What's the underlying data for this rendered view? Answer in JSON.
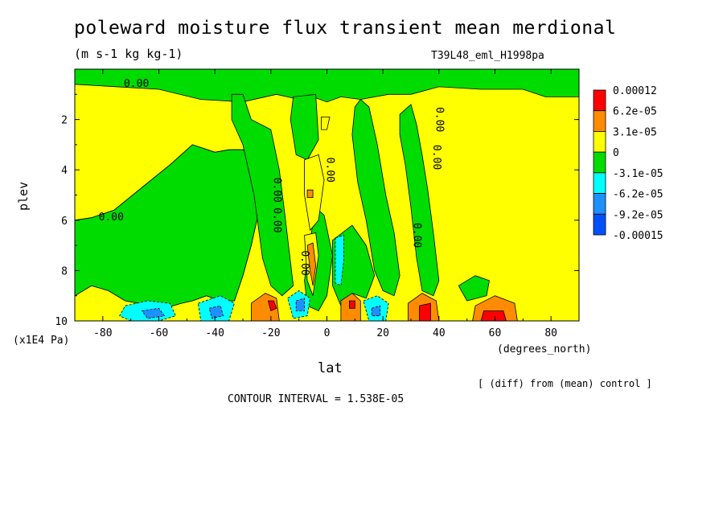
{
  "chart_data": {
    "type": "heatmap",
    "title": "poleward moisture flux transient mean merdional",
    "units": "(m s-1 kg kg-1)",
    "run_label": "T39L48_eml_H1998pa",
    "xlabel": "lat",
    "x_unit": "(degrees_north)",
    "ylabel": "plev",
    "y_unit": "(x1E4 Pa)",
    "note": "[ (diff) from (mean) control ]",
    "contour_interval": "CONTOUR INTERVAL = 1.538E-05",
    "xlim": [
      -90,
      90
    ],
    "ylim": [
      10,
      0
    ],
    "x_ticks": [
      "-80",
      "-60",
      "-40",
      "-20",
      "0",
      "20",
      "40",
      "60",
      "80"
    ],
    "x_tick_values": [
      -80,
      -60,
      -40,
      -20,
      0,
      20,
      40,
      60,
      80
    ],
    "y_ticks": [
      "2",
      "4",
      "6",
      "8",
      "10"
    ],
    "y_tick_values": [
      2,
      4,
      6,
      8,
      10
    ],
    "contour_labels": [
      {
        "text": "0.00",
        "lat": -68,
        "plev": 0.7
      },
      {
        "text": "0.00",
        "lat": -77,
        "plev": 6.0
      },
      {
        "text": "0.00",
        "lat": -19,
        "plev": 6.0
      },
      {
        "text": "0.00",
        "lat": -19,
        "plev": 4.8
      },
      {
        "text": "0.00",
        "lat": -9,
        "plev": 7.7
      },
      {
        "text": "0.00",
        "lat": 0,
        "plev": 4.0
      },
      {
        "text": "0.00",
        "lat": 31,
        "plev": 6.6
      },
      {
        "text": "0.00",
        "lat": 38,
        "plev": 3.5
      },
      {
        "text": "0.00",
        "lat": 39,
        "plev": 2.0
      }
    ],
    "legend": {
      "labels": [
        "0.00012",
        "6.2e-05",
        "3.1e-05",
        "0",
        "-3.1e-05",
        "-6.2e-05",
        "-9.2e-05",
        "-0.00015"
      ],
      "colors": [
        "#ff0000",
        "#ff8c00",
        "#e5a023",
        "#ffff00",
        "#00dc00",
        "#00ffff",
        "#1e90ff",
        "#0050ff"
      ]
    },
    "fill_colors": {
      "pos3": "#ff0000",
      "pos2": "#ff8c00",
      "pos1": "#ffff00",
      "neg1": "#00dc00",
      "neg2": "#00ffff",
      "neg3": "#1e90ff",
      "neg4": "#0050ff"
    },
    "regions": [
      {
        "level": "pos1",
        "points": [
          [
            -90,
            0.6
          ],
          [
            -60,
            0.8
          ],
          [
            -45,
            1.2
          ],
          [
            -30,
            1.3
          ],
          [
            -18,
            1.0
          ],
          [
            -10,
            1.2
          ],
          [
            -5,
            1.1
          ],
          [
            0,
            1.3
          ],
          [
            5,
            1.1
          ],
          [
            12,
            1.2
          ],
          [
            22,
            1.0
          ],
          [
            30,
            1.0
          ],
          [
            40,
            0.7
          ],
          [
            55,
            0.8
          ],
          [
            70,
            0.8
          ],
          [
            78,
            1.1
          ],
          [
            90,
            1.1
          ],
          [
            90,
            10
          ],
          [
            -90,
            10
          ],
          [
            -90,
            9.0
          ],
          [
            -84,
            8.6
          ],
          [
            -78,
            8.8
          ],
          [
            -72,
            9.2
          ],
          [
            -62,
            9.4
          ],
          [
            -58,
            9.5
          ],
          [
            -52,
            9.3
          ],
          [
            -48,
            9.2
          ],
          [
            -43,
            9.0
          ],
          [
            -38,
            9.2
          ],
          [
            -33,
            9.2
          ],
          [
            -30,
            8.2
          ],
          [
            -27,
            7.0
          ],
          [
            -25,
            6.0
          ],
          [
            -22,
            5.3
          ],
          [
            -24,
            4.8
          ],
          [
            -26,
            3.5
          ],
          [
            -30,
            3.2
          ],
          [
            -35,
            3.2
          ],
          [
            -40,
            3.3
          ],
          [
            -48,
            3.0
          ],
          [
            -56,
            3.8
          ],
          [
            -66,
            4.7
          ],
          [
            -76,
            5.6
          ],
          [
            -84,
            5.9
          ],
          [
            -90,
            6.0
          ]
        ]
      },
      {
        "level": "neg1",
        "points": [
          [
            -90,
            6.0
          ],
          [
            -84,
            5.9
          ],
          [
            -76,
            5.6
          ],
          [
            -66,
            4.7
          ],
          [
            -56,
            3.8
          ],
          [
            -48,
            3.0
          ],
          [
            -40,
            3.3
          ],
          [
            -35,
            3.2
          ],
          [
            -30,
            3.2
          ],
          [
            -26,
            3.5
          ],
          [
            -24,
            4.8
          ],
          [
            -22,
            5.3
          ],
          [
            -25,
            6.0
          ],
          [
            -27,
            7.0
          ],
          [
            -30,
            8.2
          ],
          [
            -33,
            9.2
          ],
          [
            -38,
            9.2
          ],
          [
            -43,
            9.0
          ],
          [
            -48,
            9.2
          ],
          [
            -52,
            9.3
          ],
          [
            -58,
            9.5
          ],
          [
            -62,
            9.4
          ],
          [
            -72,
            9.2
          ],
          [
            -78,
            8.8
          ],
          [
            -84,
            8.6
          ],
          [
            -90,
            9.0
          ]
        ]
      },
      {
        "level": "neg1",
        "points": [
          [
            -34,
            1.0
          ],
          [
            -30,
            1.0
          ],
          [
            -27,
            2.0
          ],
          [
            -20,
            2.4
          ],
          [
            -17,
            4.0
          ],
          [
            -15,
            5.8
          ],
          [
            -12,
            8.6
          ],
          [
            -16,
            9.0
          ],
          [
            -20,
            8.6
          ],
          [
            -23,
            7.5
          ],
          [
            -26,
            5.0
          ],
          [
            -30,
            3.0
          ],
          [
            -34,
            2.0
          ]
        ]
      },
      {
        "level": "neg1",
        "points": [
          [
            -12,
            1.1
          ],
          [
            -4,
            1.0
          ],
          [
            -3,
            2.8
          ],
          [
            -7,
            3.6
          ],
          [
            -11,
            3.4
          ],
          [
            -13,
            2.0
          ]
        ]
      },
      {
        "level": "neg1",
        "points": [
          [
            12,
            1.2
          ],
          [
            15,
            1.5
          ],
          [
            18,
            3.0
          ],
          [
            21,
            5.0
          ],
          [
            24,
            6.5
          ],
          [
            26,
            8.2
          ],
          [
            24,
            9.0
          ],
          [
            20,
            8.8
          ],
          [
            17,
            8.0
          ],
          [
            14,
            6.0
          ],
          [
            11,
            4.5
          ],
          [
            9,
            2.6
          ],
          [
            10,
            1.5
          ]
        ]
      },
      {
        "level": "neg1",
        "points": [
          [
            26,
            1.8
          ],
          [
            30,
            1.4
          ],
          [
            32,
            2.2
          ],
          [
            34,
            3.4
          ],
          [
            36,
            4.8
          ],
          [
            38,
            6.5
          ],
          [
            40,
            8.4
          ],
          [
            38,
            9.0
          ],
          [
            34,
            8.8
          ],
          [
            32,
            7.5
          ],
          [
            30,
            5.5
          ],
          [
            28,
            3.8
          ],
          [
            26,
            2.6
          ]
        ]
      },
      {
        "level": "neg1",
        "points": [
          [
            -4,
            5.5
          ],
          [
            -1,
            5.8
          ],
          [
            2,
            7.4
          ],
          [
            0,
            9.0
          ],
          [
            -3,
            9.6
          ],
          [
            -7,
            9.4
          ],
          [
            -8,
            8.4
          ],
          [
            -6,
            6.8
          ]
        ]
      },
      {
        "level": "neg1",
        "points": [
          [
            2,
            6.8
          ],
          [
            9,
            6.2
          ],
          [
            14,
            7.0
          ],
          [
            17,
            8.2
          ],
          [
            14,
            9.1
          ],
          [
            9,
            8.9
          ],
          [
            5,
            9.4
          ],
          [
            2,
            8.6
          ]
        ]
      },
      {
        "level": "neg1",
        "points": [
          [
            47,
            8.6
          ],
          [
            53,
            8.2
          ],
          [
            58,
            8.4
          ],
          [
            57,
            9.0
          ],
          [
            50,
            9.2
          ]
        ]
      },
      {
        "level": "pos1",
        "points": [
          [
            -2,
            1.9
          ],
          [
            1,
            1.9
          ],
          [
            0,
            2.4
          ],
          [
            -2,
            2.4
          ]
        ]
      },
      {
        "level": "pos1",
        "points": [
          [
            -8,
            3.6
          ],
          [
            -3,
            3.4
          ],
          [
            -1,
            4.4
          ],
          [
            -3,
            6.0
          ],
          [
            -6,
            6.4
          ],
          [
            -8,
            5.0
          ]
        ]
      },
      {
        "level": "pos2",
        "points": [
          [
            -7,
            4.8
          ],
          [
            -5,
            4.8
          ],
          [
            -5,
            5.1
          ],
          [
            -7,
            5.1
          ]
        ]
      },
      {
        "level": "pos1",
        "points": [
          [
            -8,
            6.6
          ],
          [
            -4,
            6.5
          ],
          [
            -3,
            7.4
          ],
          [
            -5,
            9.0
          ],
          [
            -7,
            8.4
          ]
        ]
      },
      {
        "level": "pos2",
        "points": [
          [
            -7,
            7.0
          ],
          [
            -5,
            6.9
          ],
          [
            -4,
            7.8
          ],
          [
            -5,
            8.6
          ],
          [
            -6,
            8.0
          ]
        ]
      },
      {
        "level": "neg2",
        "points": [
          [
            3,
            6.7
          ],
          [
            6,
            6.6
          ],
          [
            6,
            7.6
          ],
          [
            5,
            8.6
          ],
          [
            3,
            8.5
          ]
        ]
      },
      {
        "level": "neg2",
        "points": [
          [
            -72,
            9.4
          ],
          [
            -64,
            9.2
          ],
          [
            -56,
            9.3
          ],
          [
            -54,
            9.8
          ],
          [
            -60,
            10
          ],
          [
            -70,
            10
          ],
          [
            -74,
            9.8
          ]
        ]
      },
      {
        "level": "neg3",
        "points": [
          [
            -66,
            9.6
          ],
          [
            -60,
            9.5
          ],
          [
            -58,
            9.8
          ],
          [
            -64,
            9.9
          ]
        ]
      },
      {
        "level": "neg2",
        "points": [
          [
            -46,
            9.3
          ],
          [
            -38,
            9.0
          ],
          [
            -33,
            9.3
          ],
          [
            -35,
            10
          ],
          [
            -45,
            10
          ]
        ]
      },
      {
        "level": "neg3",
        "points": [
          [
            -42,
            9.5
          ],
          [
            -38,
            9.4
          ],
          [
            -37,
            9.8
          ],
          [
            -41,
            9.9
          ]
        ]
      },
      {
        "level": "neg2",
        "points": [
          [
            -14,
            9.1
          ],
          [
            -10,
            8.8
          ],
          [
            -6,
            9.1
          ],
          [
            -7,
            9.8
          ],
          [
            -12,
            9.9
          ]
        ]
      },
      {
        "level": "neg3",
        "points": [
          [
            -11,
            9.2
          ],
          [
            -8,
            9.1
          ],
          [
            -8,
            9.6
          ],
          [
            -11,
            9.6
          ]
        ]
      },
      {
        "level": "neg2",
        "points": [
          [
            13,
            9.2
          ],
          [
            18,
            9.0
          ],
          [
            22,
            9.3
          ],
          [
            21,
            10
          ],
          [
            15,
            10
          ]
        ]
      },
      {
        "level": "neg3",
        "points": [
          [
            16,
            9.5
          ],
          [
            19,
            9.4
          ],
          [
            19,
            9.8
          ],
          [
            16,
            9.8
          ]
        ]
      },
      {
        "level": "pos2",
        "points": [
          [
            -27,
            9.3
          ],
          [
            -22,
            8.9
          ],
          [
            -18,
            9.1
          ],
          [
            -17,
            10
          ],
          [
            -27,
            10
          ]
        ]
      },
      {
        "level": "pos3",
        "points": [
          [
            -21,
            9.2
          ],
          [
            -19,
            9.2
          ],
          [
            -18,
            9.5
          ],
          [
            -20,
            9.6
          ]
        ]
      },
      {
        "level": "pos2",
        "points": [
          [
            5,
            9.2
          ],
          [
            9,
            8.9
          ],
          [
            12,
            9.2
          ],
          [
            12,
            10
          ],
          [
            5,
            10
          ]
        ]
      },
      {
        "level": "pos3",
        "points": [
          [
            8,
            9.2
          ],
          [
            10,
            9.2
          ],
          [
            10,
            9.5
          ],
          [
            8,
            9.5
          ]
        ]
      },
      {
        "level": "pos2",
        "points": [
          [
            29,
            9.3
          ],
          [
            34,
            8.9
          ],
          [
            39,
            9.2
          ],
          [
            40,
            10
          ],
          [
            29,
            10
          ]
        ]
      },
      {
        "level": "pos3",
        "points": [
          [
            33,
            9.4
          ],
          [
            37,
            9.3
          ],
          [
            37,
            10
          ],
          [
            33,
            10
          ]
        ]
      },
      {
        "level": "pos2",
        "points": [
          [
            53,
            9.4
          ],
          [
            60,
            9.0
          ],
          [
            67,
            9.3
          ],
          [
            68,
            10
          ],
          [
            52,
            10
          ]
        ]
      },
      {
        "level": "pos3",
        "points": [
          [
            56,
            9.6
          ],
          [
            63,
            9.6
          ],
          [
            64,
            10
          ],
          [
            55,
            10
          ]
        ]
      }
    ]
  }
}
